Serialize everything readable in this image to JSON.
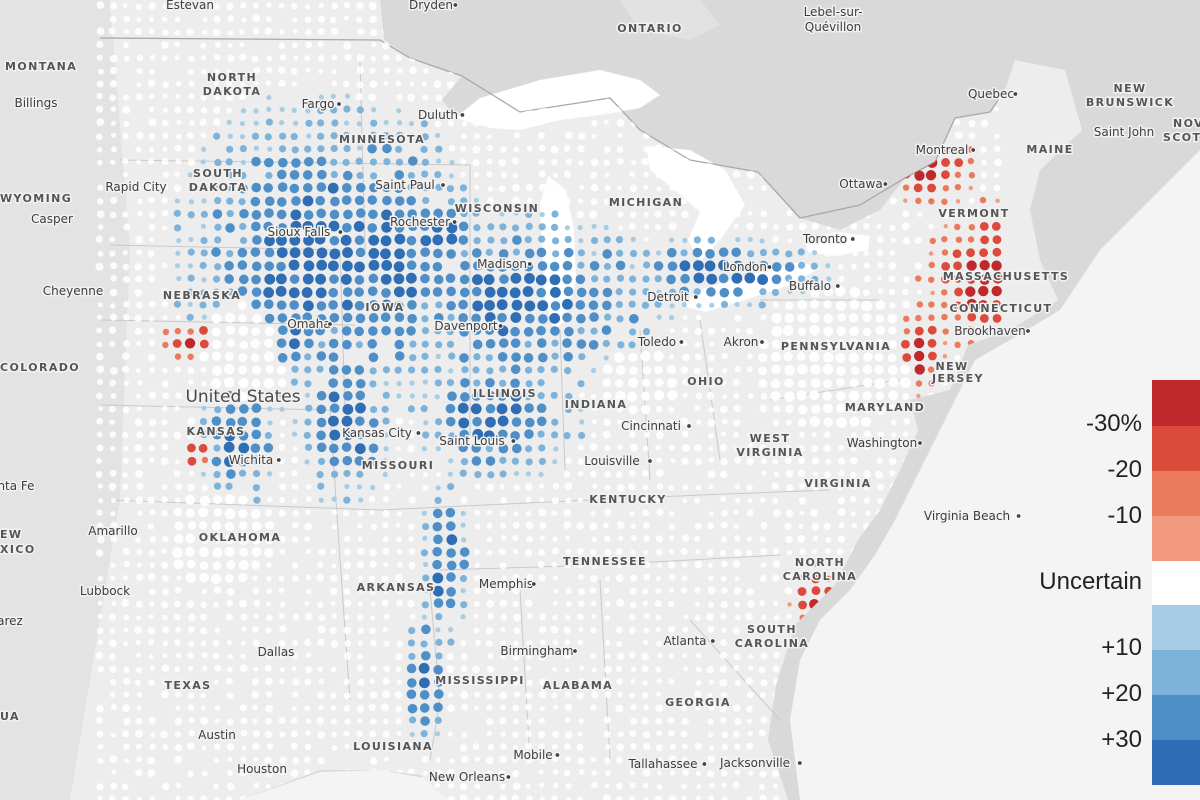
{
  "map": {
    "country_label": "United States",
    "colors": {
      "land_us": "#eeeeee",
      "land_other": "#d9d9d9",
      "water": "#ffffff",
      "uncertain_dot": "#ffffff",
      "loss_30": "#c0292b",
      "loss_20": "#dc4a3b",
      "loss_10": "#eb7a5c",
      "loss_5": "#f19a7f",
      "gain_5": "#a8cce3",
      "gain_10": "#7db3da",
      "gain_20": "#4f8fc8",
      "gain_30": "#2f6db4"
    },
    "states": [
      {
        "id": "montana",
        "text": "MONTANA"
      },
      {
        "id": "north-dakota-1",
        "text": "NORTH"
      },
      {
        "id": "north-dakota-2",
        "text": "DAKOTA"
      },
      {
        "id": "south-dakota-1",
        "text": "SOUTH"
      },
      {
        "id": "south-dakota-2",
        "text": "DAKOTA"
      },
      {
        "id": "wyoming",
        "text": "WYOMING"
      },
      {
        "id": "minnesota",
        "text": "MINNESOTA"
      },
      {
        "id": "wisconsin",
        "text": "WISCONSIN"
      },
      {
        "id": "michigan",
        "text": "MICHIGAN"
      },
      {
        "id": "nebraska",
        "text": "NEBRASKA"
      },
      {
        "id": "iowa",
        "text": "IOWA"
      },
      {
        "id": "colorado",
        "text": "COLORADO"
      },
      {
        "id": "kansas",
        "text": "KANSAS"
      },
      {
        "id": "missouri",
        "text": "MISSOURI"
      },
      {
        "id": "illinois",
        "text": "ILLINOIS"
      },
      {
        "id": "indiana",
        "text": "INDIANA"
      },
      {
        "id": "ohio",
        "text": "OHIO"
      },
      {
        "id": "pennsylvania",
        "text": "PENNSYLVANIA"
      },
      {
        "id": "new-jersey-1",
        "text": "NEW"
      },
      {
        "id": "new-jersey-2",
        "text": "JERSEY"
      },
      {
        "id": "maryland",
        "text": "MARYLAND"
      },
      {
        "id": "west-virginia-1",
        "text": "WEST"
      },
      {
        "id": "west-virginia-2",
        "text": "VIRGINIA"
      },
      {
        "id": "virginia",
        "text": "VIRGINIA"
      },
      {
        "id": "kentucky",
        "text": "KENTUCKY"
      },
      {
        "id": "tennessee",
        "text": "TENNESSEE"
      },
      {
        "id": "north-carolina-1",
        "text": "NORTH"
      },
      {
        "id": "north-carolina-2",
        "text": "CAROLINA"
      },
      {
        "id": "south-carolina-1",
        "text": "SOUTH"
      },
      {
        "id": "south-carolina-2",
        "text": "CAROLINA"
      },
      {
        "id": "georgia",
        "text": "GEORGIA"
      },
      {
        "id": "alabama",
        "text": "ALABAMA"
      },
      {
        "id": "mississippi",
        "text": "MISSISSIPPI"
      },
      {
        "id": "arkansas",
        "text": "ARKANSAS"
      },
      {
        "id": "louisiana",
        "text": "LOUISIANA"
      },
      {
        "id": "oklahoma",
        "text": "OKLAHOMA"
      },
      {
        "id": "texas",
        "text": "TEXAS"
      },
      {
        "id": "vermont",
        "text": "VERMONT"
      },
      {
        "id": "maine",
        "text": "MAINE"
      },
      {
        "id": "massachusetts",
        "text": "MASSACHUSETTS"
      },
      {
        "id": "connecticut",
        "text": "CONNECTICUT"
      },
      {
        "id": "ontario",
        "text": "ONTARIO"
      },
      {
        "id": "new-brunswick-1",
        "text": "NEW"
      },
      {
        "id": "new-brunswick-2",
        "text": "BRUNSWICK"
      },
      {
        "id": "nova-scotia-1",
        "text": "NOVA"
      },
      {
        "id": "nova-scotia-2",
        "text": "SCOTI"
      },
      {
        "id": "new-mexico-1",
        "text": "EW"
      },
      {
        "id": "new-mexico-2",
        "text": "XICO"
      },
      {
        "id": "arizona",
        "text": "UA"
      }
    ],
    "cities": [
      {
        "id": "estevan",
        "text": "Estevan"
      },
      {
        "id": "dryden",
        "text": "Dryden"
      },
      {
        "id": "lebel-1",
        "text": "Lebel-sur-"
      },
      {
        "id": "lebel-2",
        "text": "Quévillon"
      },
      {
        "id": "billings",
        "text": "Billings"
      },
      {
        "id": "fargo",
        "text": "Fargo"
      },
      {
        "id": "duluth",
        "text": "Duluth"
      },
      {
        "id": "rapid-city",
        "text": "Rapid City"
      },
      {
        "id": "casper",
        "text": "Casper"
      },
      {
        "id": "saint-paul",
        "text": "Saint Paul"
      },
      {
        "id": "rochester",
        "text": "Rochester"
      },
      {
        "id": "sioux-falls",
        "text": "Sioux Falls"
      },
      {
        "id": "madison",
        "text": "Madison"
      },
      {
        "id": "cheyenne",
        "text": "Cheyenne"
      },
      {
        "id": "omaha",
        "text": "Omaha"
      },
      {
        "id": "davenport",
        "text": "Davenport"
      },
      {
        "id": "detroit",
        "text": "Detroit"
      },
      {
        "id": "london",
        "text": "London"
      },
      {
        "id": "toronto",
        "text": "Toronto"
      },
      {
        "id": "buffalo",
        "text": "Buffalo"
      },
      {
        "id": "toledo",
        "text": "Toledo"
      },
      {
        "id": "akron",
        "text": "Akron"
      },
      {
        "id": "quebec",
        "text": "Quebec"
      },
      {
        "id": "saint-john",
        "text": "Saint John"
      },
      {
        "id": "montreal",
        "text": "Montreal"
      },
      {
        "id": "ottawa",
        "text": "Ottawa"
      },
      {
        "id": "brookhaven",
        "text": "Brookhaven"
      },
      {
        "id": "kansas-city",
        "text": "Kansas City"
      },
      {
        "id": "saint-louis",
        "text": "Saint Louis"
      },
      {
        "id": "wichita",
        "text": "Wichita"
      },
      {
        "id": "cincinnati",
        "text": "Cincinnati"
      },
      {
        "id": "louisville",
        "text": "Louisville"
      },
      {
        "id": "washington",
        "text": "Washington"
      },
      {
        "id": "virginia-beach",
        "text": "Virginia Beach"
      },
      {
        "id": "santa-fe",
        "text": "nta Fe"
      },
      {
        "id": "amarillo",
        "text": "Amarillo"
      },
      {
        "id": "lubbock",
        "text": "Lubbock"
      },
      {
        "id": "arez",
        "text": "arez"
      },
      {
        "id": "dallas",
        "text": "Dallas"
      },
      {
        "id": "memphis",
        "text": "Memphis"
      },
      {
        "id": "birmingham",
        "text": "Birmingham"
      },
      {
        "id": "atlanta",
        "text": "Atlanta"
      },
      {
        "id": "austin",
        "text": "Austin"
      },
      {
        "id": "houston",
        "text": "Houston"
      },
      {
        "id": "mobile",
        "text": "Mobile"
      },
      {
        "id": "new-orleans",
        "text": "New Orleans"
      },
      {
        "id": "tallahassee",
        "text": "Tallahassee"
      },
      {
        "id": "jacksonville",
        "text": "Jacksonville"
      }
    ]
  },
  "legend": {
    "labels": [
      "-30%",
      "-20",
      "-10",
      "Uncertain",
      "+10",
      "+20",
      "+30"
    ],
    "swatch_colors": [
      "#c0292b",
      "#dc4a3b",
      "#eb7a5c",
      "#f19a7f",
      "#ffffff",
      "#a8cce3",
      "#7db3da",
      "#4f8fc8",
      "#2f6db4"
    ]
  }
}
